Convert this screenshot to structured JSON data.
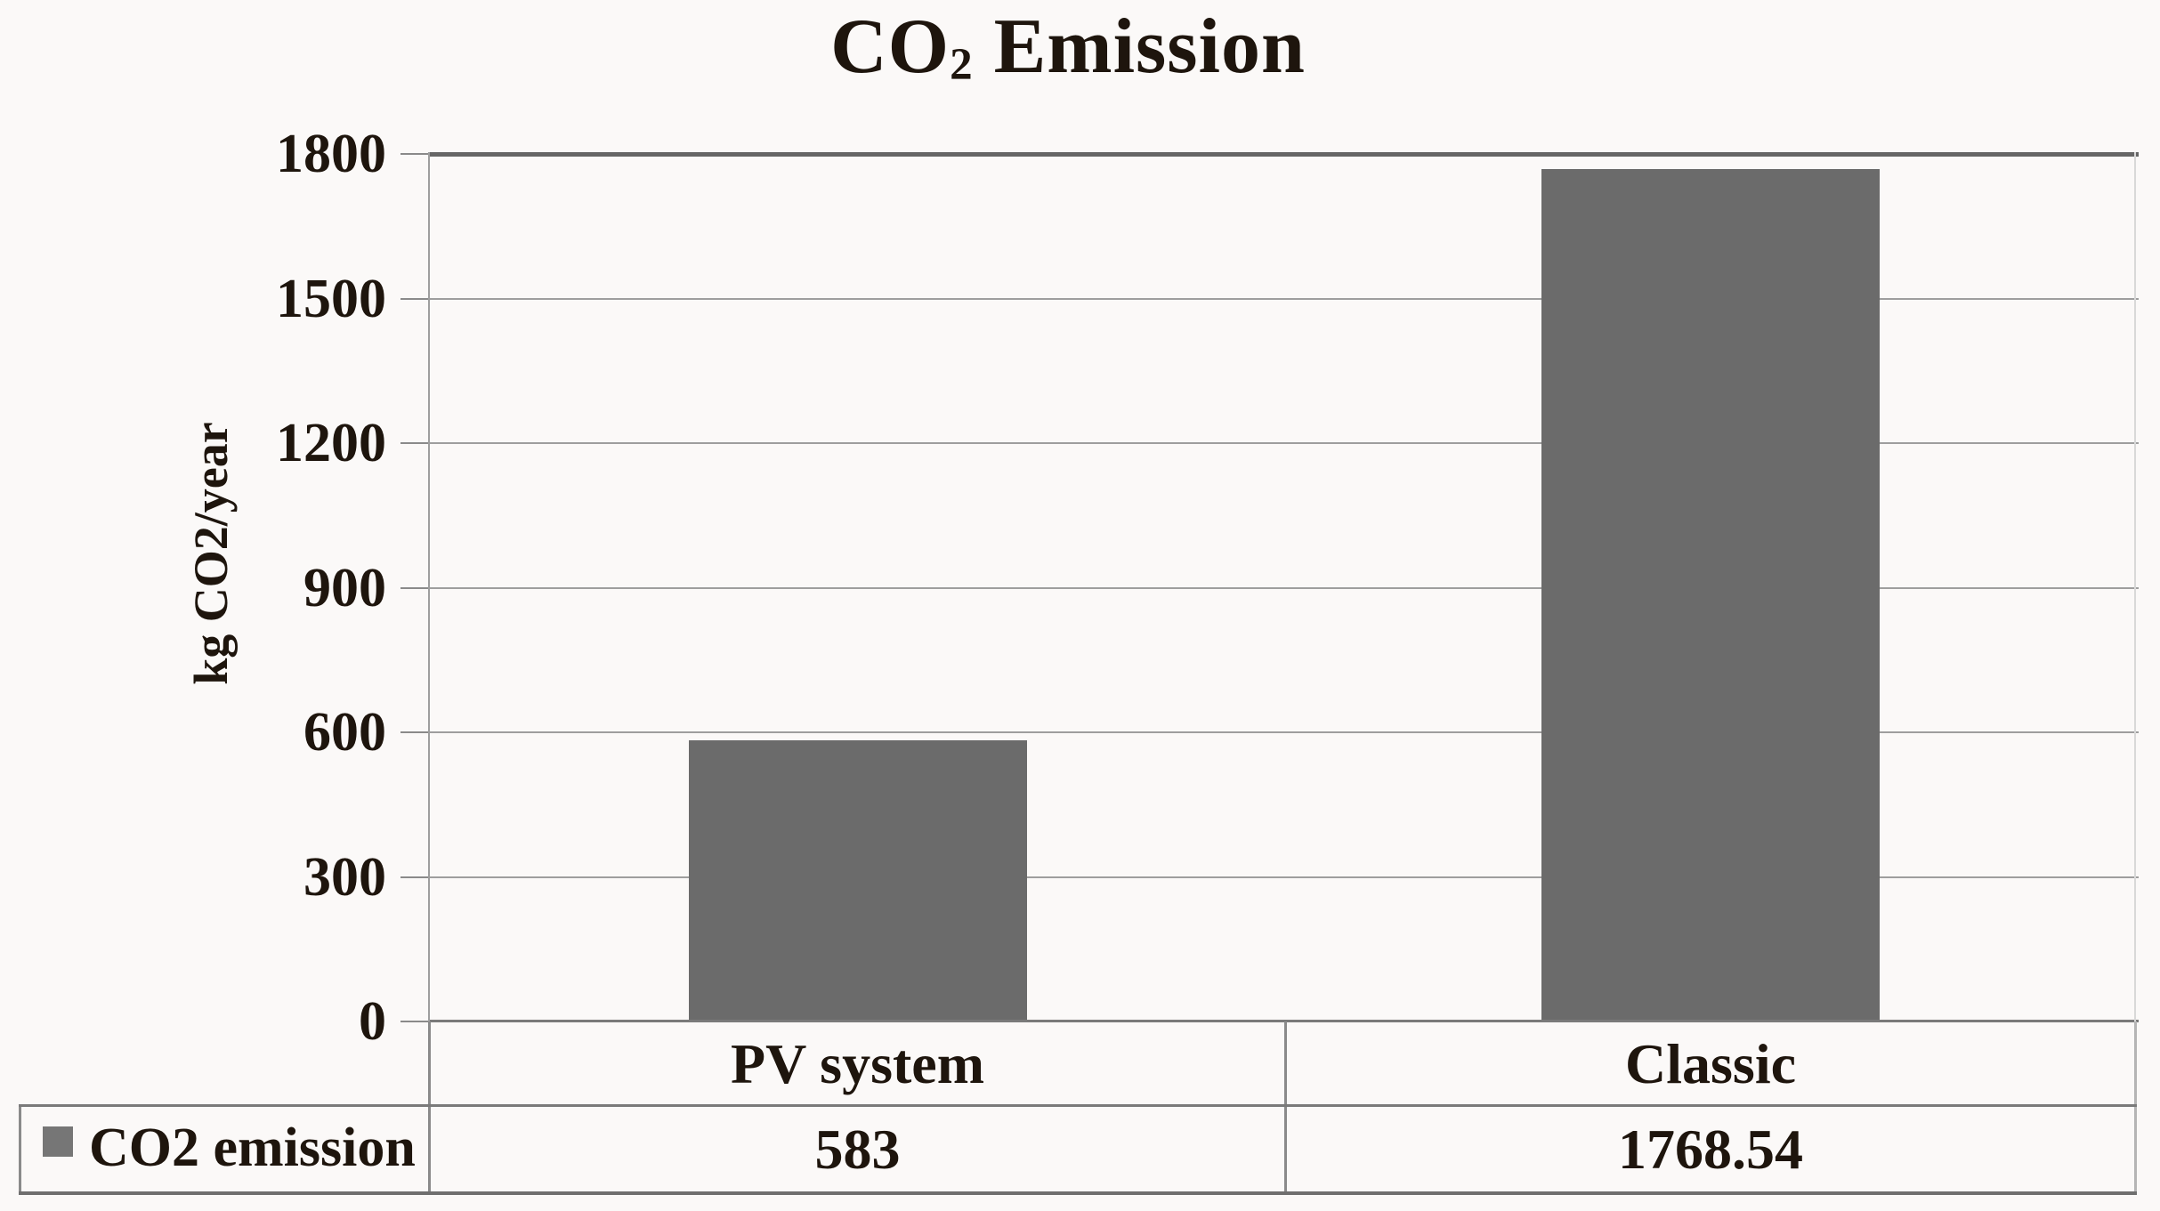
{
  "title": {
    "prefix": "CO",
    "subscript": "2",
    "suffix": " Emission",
    "full": "CO2 Emission"
  },
  "y_axis": {
    "label": "kg CO2/year",
    "tick_labels": [
      "0",
      "300",
      "600",
      "900",
      "1200",
      "1500",
      "1800"
    ]
  },
  "legend": {
    "label": "CO2 emission",
    "swatch_color": "#767676"
  },
  "table": {
    "categories": [
      "PV system",
      "Classic"
    ],
    "values": [
      "583",
      "1768.54"
    ]
  },
  "colors": {
    "bar": "#6b6b6b",
    "gridline": "#9e9e9e",
    "axis_line": "#7a7a7a",
    "top_line": "#666666",
    "table_border": "#8a8a8a",
    "table_bottom": "#6f6f6f",
    "right_border_plot": "#d8d8d8",
    "right_border_table": "#b5b5b5",
    "text": "#1e150d",
    "background": "#fbf9f8"
  },
  "chart_data": {
    "type": "bar",
    "title": "CO2 Emission",
    "categories": [
      "PV system",
      "Classic"
    ],
    "series": [
      {
        "name": "CO2 emission",
        "values": [
          583,
          1768.54
        ]
      }
    ],
    "xlabel": "",
    "ylabel": "kg CO2/year",
    "ylim": [
      0,
      1800
    ],
    "yticks": [
      0,
      300,
      600,
      900,
      1200,
      1500,
      1800
    ],
    "grid": true,
    "legend_position": "bottom table row",
    "bar_color": "#6b6b6b",
    "data_table_shown": true
  }
}
